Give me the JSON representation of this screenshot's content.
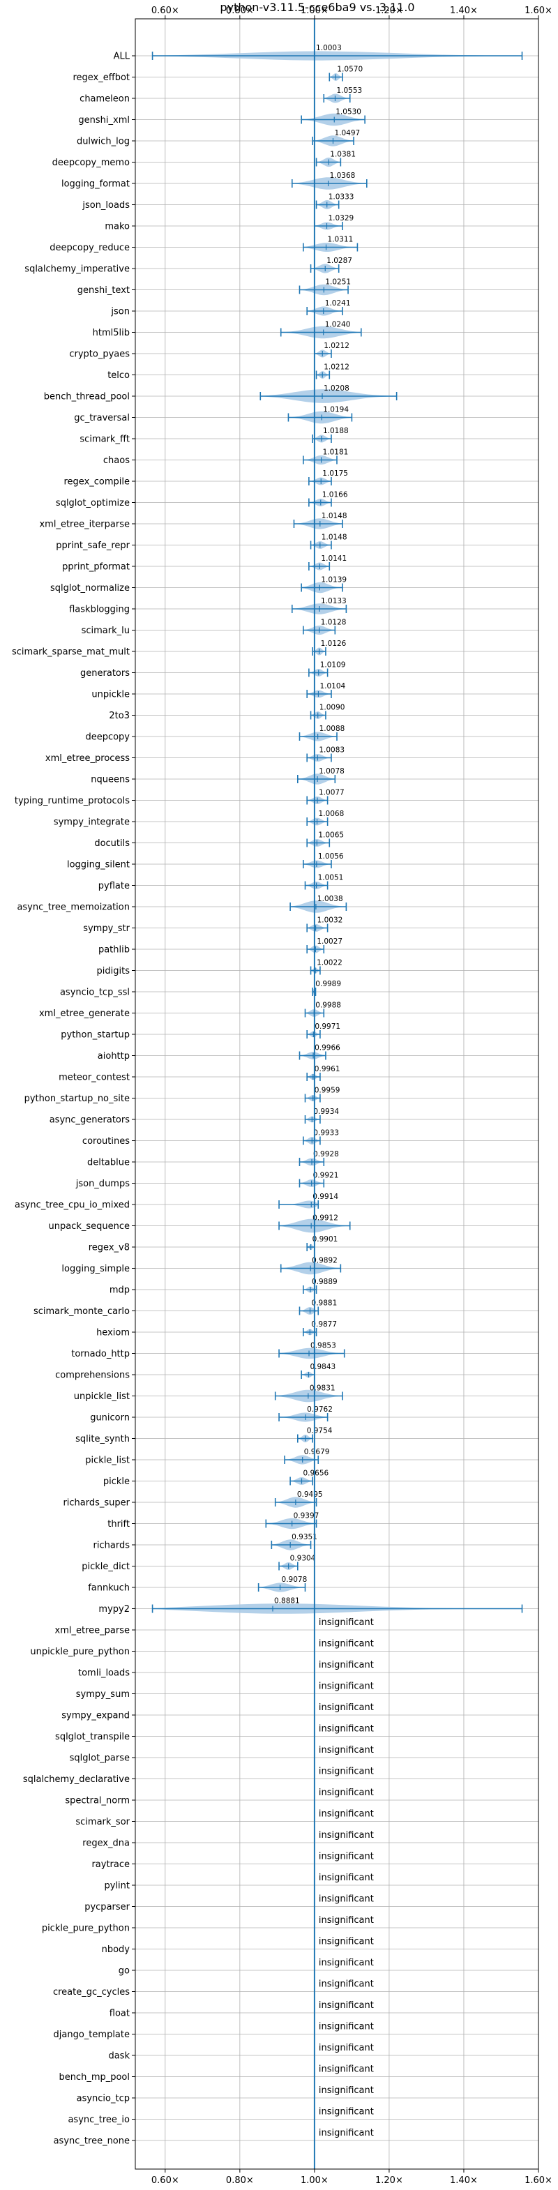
{
  "chart_data": {
    "type": "violin",
    "title": "python-v3.11.5-cce6ba9 vs. 3.11.0",
    "xlim": [
      0.52,
      1.6
    ],
    "xticks": [
      0.6,
      0.8,
      1.0,
      1.2,
      1.4,
      1.6
    ],
    "xtick_labels": [
      "0.60×",
      "0.80×",
      "1.00×",
      "1.20×",
      "1.40×",
      "1.60×"
    ],
    "reference_line": 1.0,
    "xaxis_top": true,
    "xaxis_bottom": true,
    "grid": true,
    "colors": {
      "violin": "#a6c8e5",
      "line": "#1f77b4",
      "grid": "#b0b0b0"
    },
    "insignificant_text": "insignificant",
    "benchmarks": [
      {
        "name": "ALL",
        "value": 1.0003,
        "label": "1.0003",
        "lo": 0.5659,
        "hi": 1.5561,
        "width": 0.6
      },
      {
        "name": "regex_effbot",
        "value": 1.057,
        "label": "1.0570",
        "lo": 1.04,
        "hi": 1.075,
        "width": 0.5
      },
      {
        "name": "chameleon",
        "value": 1.0553,
        "label": "1.0553",
        "lo": 1.025,
        "hi": 1.095,
        "width": 0.6
      },
      {
        "name": "genshi_xml",
        "value": 1.053,
        "label": "1.0530",
        "lo": 0.965,
        "hi": 1.135,
        "width": 0.8
      },
      {
        "name": "dulwich_log",
        "value": 1.0497,
        "label": "1.0497",
        "lo": 0.995,
        "hi": 1.105,
        "width": 0.7
      },
      {
        "name": "deepcopy_memo",
        "value": 1.0381,
        "label": "1.0381",
        "lo": 1.005,
        "hi": 1.07,
        "width": 0.6
      },
      {
        "name": "logging_format",
        "value": 1.0368,
        "label": "1.0368",
        "lo": 0.94,
        "hi": 1.14,
        "width": 0.8
      },
      {
        "name": "json_loads",
        "value": 1.0333,
        "label": "1.0333",
        "lo": 1.005,
        "hi": 1.065,
        "width": 0.6
      },
      {
        "name": "mako",
        "value": 1.0329,
        "label": "1.0329",
        "lo": 1.0,
        "hi": 1.075,
        "width": 0.5
      },
      {
        "name": "deepcopy_reduce",
        "value": 1.0311,
        "label": "1.0311",
        "lo": 0.97,
        "hi": 1.115,
        "width": 0.6
      },
      {
        "name": "sqlalchemy_imperative",
        "value": 1.0287,
        "label": "1.0287",
        "lo": 0.99,
        "hi": 1.065,
        "width": 0.6
      },
      {
        "name": "genshi_text",
        "value": 1.0251,
        "label": "1.0251",
        "lo": 0.96,
        "hi": 1.09,
        "width": 0.7
      },
      {
        "name": "json",
        "value": 1.0241,
        "label": "1.0241",
        "lo": 0.98,
        "hi": 1.075,
        "width": 0.6
      },
      {
        "name": "html5lib",
        "value": 1.024,
        "label": "1.0240",
        "lo": 0.91,
        "hi": 1.125,
        "width": 0.8
      },
      {
        "name": "crypto_pyaes",
        "value": 1.0212,
        "label": "1.0212",
        "lo": 1.0,
        "hi": 1.045,
        "width": 0.5
      },
      {
        "name": "telco",
        "value": 1.0212,
        "label": "1.0212",
        "lo": 1.005,
        "hi": 1.04,
        "width": 0.5
      },
      {
        "name": "bench_thread_pool",
        "value": 1.0208,
        "label": "1.0208",
        "lo": 0.855,
        "hi": 1.22,
        "width": 0.9
      },
      {
        "name": "gc_traversal",
        "value": 1.0194,
        "label": "1.0194",
        "lo": 0.93,
        "hi": 1.1,
        "width": 0.8
      },
      {
        "name": "scimark_fft",
        "value": 1.0188,
        "label": "1.0188",
        "lo": 0.995,
        "hi": 1.045,
        "width": 0.5
      },
      {
        "name": "chaos",
        "value": 1.0181,
        "label": "1.0181",
        "lo": 0.97,
        "hi": 1.06,
        "width": 0.6
      },
      {
        "name": "regex_compile",
        "value": 1.0175,
        "label": "1.0175",
        "lo": 0.985,
        "hi": 1.045,
        "width": 0.5
      },
      {
        "name": "sqlglot_optimize",
        "value": 1.0166,
        "label": "1.0166",
        "lo": 0.985,
        "hi": 1.045,
        "width": 0.5
      },
      {
        "name": "xml_etree_iterparse",
        "value": 1.0148,
        "label": "1.0148",
        "lo": 0.945,
        "hi": 1.075,
        "width": 0.7
      },
      {
        "name": "pprint_safe_repr",
        "value": 1.0148,
        "label": "1.0148",
        "lo": 0.99,
        "hi": 1.045,
        "width": 0.5
      },
      {
        "name": "pprint_pformat",
        "value": 1.0141,
        "label": "1.0141",
        "lo": 0.985,
        "hi": 1.04,
        "width": 0.5
      },
      {
        "name": "sqlglot_normalize",
        "value": 1.0139,
        "label": "1.0139",
        "lo": 0.965,
        "hi": 1.075,
        "width": 0.7
      },
      {
        "name": "flaskblogging",
        "value": 1.0133,
        "label": "1.0133",
        "lo": 0.94,
        "hi": 1.085,
        "width": 0.7
      },
      {
        "name": "scimark_lu",
        "value": 1.0128,
        "label": "1.0128",
        "lo": 0.97,
        "hi": 1.055,
        "width": 0.6
      },
      {
        "name": "scimark_sparse_mat_mult",
        "value": 1.0126,
        "label": "1.0126",
        "lo": 0.995,
        "hi": 1.03,
        "width": 0.5
      },
      {
        "name": "generators",
        "value": 1.0109,
        "label": "1.0109",
        "lo": 0.985,
        "hi": 1.035,
        "width": 0.5
      },
      {
        "name": "unpickle",
        "value": 1.0104,
        "label": "1.0104",
        "lo": 0.98,
        "hi": 1.045,
        "width": 0.5
      },
      {
        "name": "2to3",
        "value": 1.009,
        "label": "1.0090",
        "lo": 0.99,
        "hi": 1.03,
        "width": 0.5
      },
      {
        "name": "deepcopy",
        "value": 1.0088,
        "label": "1.0088",
        "lo": 0.96,
        "hi": 1.06,
        "width": 0.6
      },
      {
        "name": "xml_etree_process",
        "value": 1.0083,
        "label": "1.0083",
        "lo": 0.98,
        "hi": 1.045,
        "width": 0.5
      },
      {
        "name": "nqueens",
        "value": 1.0078,
        "label": "1.0078",
        "lo": 0.955,
        "hi": 1.055,
        "width": 0.7
      },
      {
        "name": "typing_runtime_protocols",
        "value": 1.0077,
        "label": "1.0077",
        "lo": 0.98,
        "hi": 1.035,
        "width": 0.5
      },
      {
        "name": "sympy_integrate",
        "value": 1.0068,
        "label": "1.0068",
        "lo": 0.98,
        "hi": 1.035,
        "width": 0.5
      },
      {
        "name": "docutils",
        "value": 1.0065,
        "label": "1.0065",
        "lo": 0.98,
        "hi": 1.04,
        "width": 0.5
      },
      {
        "name": "logging_silent",
        "value": 1.0056,
        "label": "1.0056",
        "lo": 0.97,
        "hi": 1.045,
        "width": 0.5
      },
      {
        "name": "pyflate",
        "value": 1.0051,
        "label": "1.0051",
        "lo": 0.975,
        "hi": 1.035,
        "width": 0.5
      },
      {
        "name": "async_tree_memoization",
        "value": 1.0038,
        "label": "1.0038",
        "lo": 0.935,
        "hi": 1.085,
        "width": 0.8
      },
      {
        "name": "sympy_str",
        "value": 1.0032,
        "label": "1.0032",
        "lo": 0.98,
        "hi": 1.035,
        "width": 0.5
      },
      {
        "name": "pathlib",
        "value": 1.0027,
        "label": "1.0027",
        "lo": 0.98,
        "hi": 1.025,
        "width": 0.5
      },
      {
        "name": "pidigits",
        "value": 1.0022,
        "label": "1.0022",
        "lo": 0.99,
        "hi": 1.015,
        "width": 0.4
      },
      {
        "name": "asyncio_tcp_ssl",
        "value": 0.9989,
        "label": "0.9989",
        "lo": 0.995,
        "hi": 1.003,
        "width": 0.3
      },
      {
        "name": "xml_etree_generate",
        "value": 0.9988,
        "label": "0.9988",
        "lo": 0.975,
        "hi": 1.025,
        "width": 0.5
      },
      {
        "name": "python_startup",
        "value": 0.9971,
        "label": "0.9971",
        "lo": 0.98,
        "hi": 1.015,
        "width": 0.4
      },
      {
        "name": "aiohttp",
        "value": 0.9966,
        "label": "0.9966",
        "lo": 0.96,
        "hi": 1.03,
        "width": 0.5
      },
      {
        "name": "meteor_contest",
        "value": 0.9961,
        "label": "0.9961",
        "lo": 0.98,
        "hi": 1.015,
        "width": 0.4
      },
      {
        "name": "python_startup_no_site",
        "value": 0.9959,
        "label": "0.9959",
        "lo": 0.975,
        "hi": 1.015,
        "width": 0.4
      },
      {
        "name": "async_generators",
        "value": 0.9934,
        "label": "0.9934",
        "lo": 0.975,
        "hi": 1.015,
        "width": 0.4
      },
      {
        "name": "coroutines",
        "value": 0.9933,
        "label": "0.9933",
        "lo": 0.97,
        "hi": 1.015,
        "width": 0.5
      },
      {
        "name": "deltablue",
        "value": 0.9928,
        "label": "0.9928",
        "lo": 0.96,
        "hi": 1.025,
        "width": 0.5
      },
      {
        "name": "json_dumps",
        "value": 0.9921,
        "label": "0.9921",
        "lo": 0.96,
        "hi": 1.025,
        "width": 0.5
      },
      {
        "name": "async_tree_cpu_io_mixed",
        "value": 0.9914,
        "label": "0.9914",
        "lo": 0.905,
        "hi": 1.01,
        "width": 0.6
      },
      {
        "name": "unpack_sequence",
        "value": 0.9912,
        "label": "0.9912",
        "lo": 0.905,
        "hi": 1.095,
        "width": 0.9
      },
      {
        "name": "regex_v8",
        "value": 0.9901,
        "label": "0.9901",
        "lo": 0.98,
        "hi": 1.0,
        "width": 0.4
      },
      {
        "name": "logging_simple",
        "value": 0.9892,
        "label": "0.9892",
        "lo": 0.91,
        "hi": 1.07,
        "width": 0.8
      },
      {
        "name": "mdp",
        "value": 0.9889,
        "label": "0.9889",
        "lo": 0.97,
        "hi": 1.005,
        "width": 0.4
      },
      {
        "name": "scimark_monte_carlo",
        "value": 0.9881,
        "label": "0.9881",
        "lo": 0.96,
        "hi": 1.01,
        "width": 0.5
      },
      {
        "name": "hexiom",
        "value": 0.9877,
        "label": "0.9877",
        "lo": 0.97,
        "hi": 1.005,
        "width": 0.4
      },
      {
        "name": "tornado_http",
        "value": 0.9853,
        "label": "0.9853",
        "lo": 0.905,
        "hi": 1.08,
        "width": 0.7
      },
      {
        "name": "comprehensions",
        "value": 0.9843,
        "label": "0.9843",
        "lo": 0.965,
        "hi": 1.0,
        "width": 0.4
      },
      {
        "name": "unpickle_list",
        "value": 0.9831,
        "label": "0.9831",
        "lo": 0.895,
        "hi": 1.075,
        "width": 0.8
      },
      {
        "name": "gunicorn",
        "value": 0.9762,
        "label": "0.9762",
        "lo": 0.905,
        "hi": 1.035,
        "width": 0.6
      },
      {
        "name": "sqlite_synth",
        "value": 0.9754,
        "label": "0.9754",
        "lo": 0.955,
        "hi": 0.995,
        "width": 0.5
      },
      {
        "name": "pickle_list",
        "value": 0.9679,
        "label": "0.9679",
        "lo": 0.92,
        "hi": 1.01,
        "width": 0.6
      },
      {
        "name": "pickle",
        "value": 0.9656,
        "label": "0.9656",
        "lo": 0.935,
        "hi": 0.995,
        "width": 0.5
      },
      {
        "name": "richards_super",
        "value": 0.9495,
        "label": "0.9495",
        "lo": 0.895,
        "hi": 1.005,
        "width": 0.7
      },
      {
        "name": "thrift",
        "value": 0.9397,
        "label": "0.9397",
        "lo": 0.87,
        "hi": 1.005,
        "width": 0.7
      },
      {
        "name": "richards",
        "value": 0.9351,
        "label": "0.9351",
        "lo": 0.885,
        "hi": 0.99,
        "width": 0.7
      },
      {
        "name": "pickle_dict",
        "value": 0.9304,
        "label": "0.9304",
        "lo": 0.905,
        "hi": 0.955,
        "width": 0.5
      },
      {
        "name": "fannkuch",
        "value": 0.9078,
        "label": "0.9078",
        "lo": 0.85,
        "hi": 0.975,
        "width": 0.6
      },
      {
        "name": "mypy2",
        "value": 0.8881,
        "label": "0.8881",
        "lo": 0.5659,
        "hi": 1.5561,
        "width": 0.7
      },
      {
        "name": "xml_etree_parse",
        "insignificant": true
      },
      {
        "name": "unpickle_pure_python",
        "insignificant": true
      },
      {
        "name": "tomli_loads",
        "insignificant": true
      },
      {
        "name": "sympy_sum",
        "insignificant": true
      },
      {
        "name": "sympy_expand",
        "insignificant": true
      },
      {
        "name": "sqlglot_transpile",
        "insignificant": true
      },
      {
        "name": "sqlglot_parse",
        "insignificant": true
      },
      {
        "name": "sqlalchemy_declarative",
        "insignificant": true
      },
      {
        "name": "spectral_norm",
        "insignificant": true
      },
      {
        "name": "scimark_sor",
        "insignificant": true
      },
      {
        "name": "regex_dna",
        "insignificant": true
      },
      {
        "name": "raytrace",
        "insignificant": true
      },
      {
        "name": "pylint",
        "insignificant": true
      },
      {
        "name": "pycparser",
        "insignificant": true
      },
      {
        "name": "pickle_pure_python",
        "insignificant": true
      },
      {
        "name": "nbody",
        "insignificant": true
      },
      {
        "name": "go",
        "insignificant": true
      },
      {
        "name": "create_gc_cycles",
        "insignificant": true
      },
      {
        "name": "float",
        "insignificant": true
      },
      {
        "name": "django_template",
        "insignificant": true
      },
      {
        "name": "dask",
        "insignificant": true
      },
      {
        "name": "bench_mp_pool",
        "insignificant": true
      },
      {
        "name": "asyncio_tcp",
        "insignificant": true
      },
      {
        "name": "async_tree_io",
        "insignificant": true
      },
      {
        "name": "async_tree_none",
        "insignificant": true
      }
    ]
  }
}
